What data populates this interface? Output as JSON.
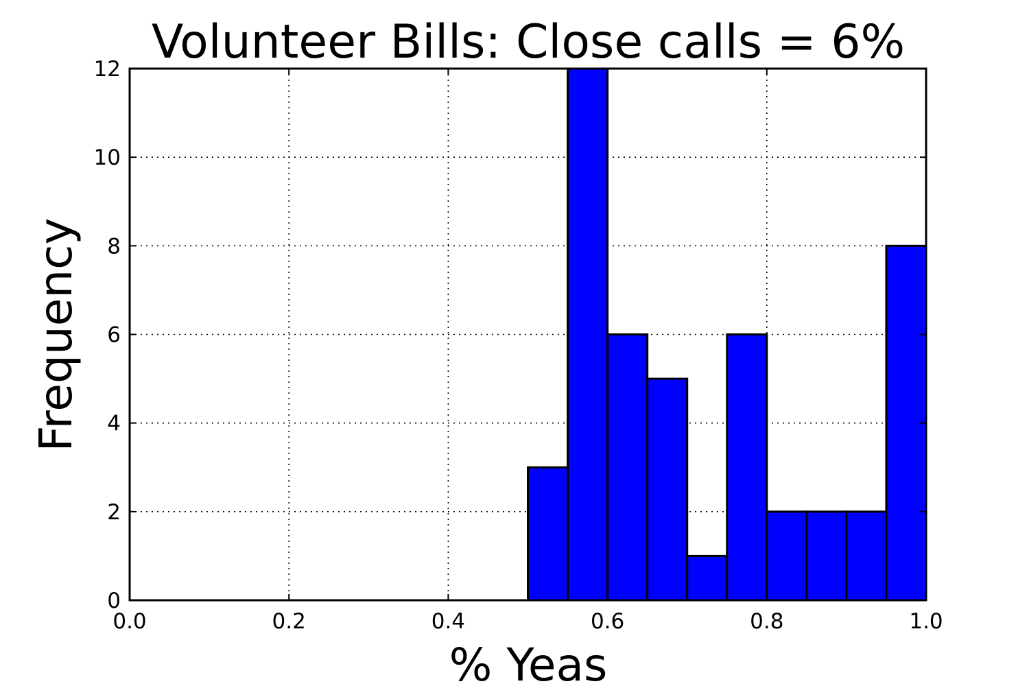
{
  "chart_data": {
    "type": "bar",
    "title": "Volunteer Bills: Close calls = 6%",
    "xlabel": "% Yeas",
    "ylabel": "Frequency",
    "xlim": [
      0.0,
      1.0
    ],
    "ylim": [
      0,
      12
    ],
    "xticks": [
      "0.0",
      "0.2",
      "0.4",
      "0.6",
      "0.8",
      "1.0"
    ],
    "yticks": [
      "0",
      "2",
      "4",
      "6",
      "8",
      "10",
      "12"
    ],
    "grid": true,
    "bar_color": "#0000ff",
    "bins": [
      [
        0.0,
        0.05
      ],
      [
        0.05,
        0.1
      ],
      [
        0.1,
        0.15
      ],
      [
        0.15,
        0.2
      ],
      [
        0.2,
        0.25
      ],
      [
        0.25,
        0.3
      ],
      [
        0.3,
        0.35
      ],
      [
        0.35,
        0.4
      ],
      [
        0.4,
        0.45
      ],
      [
        0.45,
        0.5
      ],
      [
        0.5,
        0.55
      ],
      [
        0.55,
        0.6
      ],
      [
        0.6,
        0.65
      ],
      [
        0.65,
        0.7
      ],
      [
        0.7,
        0.75
      ],
      [
        0.75,
        0.8
      ],
      [
        0.8,
        0.85
      ],
      [
        0.85,
        0.9
      ],
      [
        0.9,
        0.95
      ],
      [
        0.95,
        1.0
      ]
    ],
    "values": [
      0,
      0,
      0,
      0,
      0,
      0,
      0,
      0,
      0,
      0,
      3,
      12,
      6,
      5,
      1,
      6,
      2,
      2,
      2,
      8
    ]
  }
}
